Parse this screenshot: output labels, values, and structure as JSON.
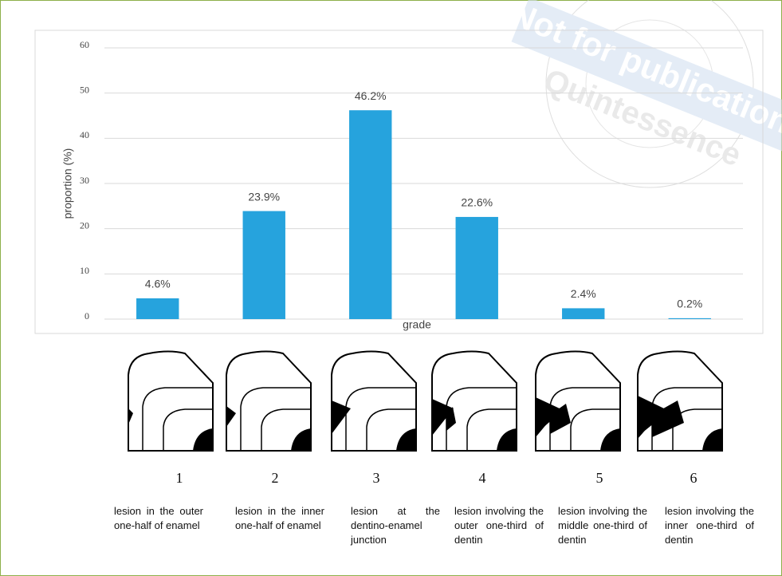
{
  "chart_data": {
    "type": "bar",
    "x_label": "grade",
    "y_label": "proportion (%)",
    "categories": [
      "1",
      "2",
      "3",
      "4",
      "5",
      "6"
    ],
    "values": [
      4.6,
      23.9,
      46.2,
      22.6,
      2.4,
      0.2
    ],
    "value_labels": [
      "4.6%",
      "23.9%",
      "46.2%",
      "22.6%",
      "2.4%",
      "0.2%"
    ],
    "descriptions": [
      "lesion in the outer one-half of enamel",
      "lesion in the inner one-half of enamel",
      "lesion at the dentino-enamel junction",
      "lesion involving the outer one-third of dentin",
      "lesion involving the middle one-third of dentin",
      "lesion involving the inner one-third of dentin"
    ],
    "color": "#26a3dd",
    "ylim": [
      0,
      60
    ],
    "yticks": [
      0,
      10,
      20,
      30,
      40,
      50,
      60
    ],
    "grid": true
  },
  "watermark": {
    "line1": "Not for publication",
    "line2": "Quintessence"
  }
}
